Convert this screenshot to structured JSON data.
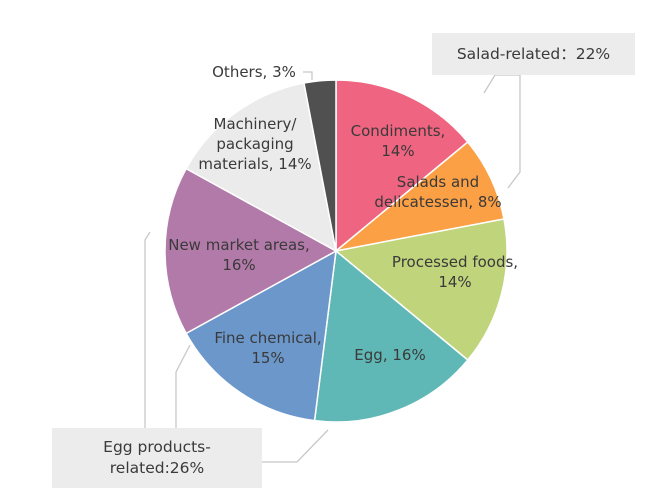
{
  "chart_data": {
    "type": "pie",
    "title": "",
    "slices": [
      {
        "label_lines": [
          "Condiments,",
          "14%"
        ],
        "name": "Condiments",
        "value": 14,
        "color": "#ef6480"
      },
      {
        "label_lines": [
          "Salads and",
          "delicatessen, 8%"
        ],
        "name": "Salads and delicatessen",
        "value": 8,
        "color": "#fba045"
      },
      {
        "label_lines": [
          "Processed foods,",
          "14%"
        ],
        "name": "Processed foods",
        "value": 14,
        "color": "#c0d47c"
      },
      {
        "label_lines": [
          "Egg, 16%"
        ],
        "name": "Egg",
        "value": 16,
        "color": "#5fb8b6"
      },
      {
        "label_lines": [
          "Fine chemical,",
          "15%"
        ],
        "name": "Fine chemical",
        "value": 15,
        "color": "#6b97cb"
      },
      {
        "label_lines": [
          "New market areas,",
          "16%"
        ],
        "name": "New market areas",
        "value": 16,
        "color": "#b27aa9"
      },
      {
        "label_lines": [
          "Machinery/",
          "packaging",
          "materials, 14%"
        ],
        "name": "Machinery/packaging materials",
        "value": 14,
        "color": "#ebebeb"
      },
      {
        "label_lines": [
          "Others, 3%"
        ],
        "name": "Others",
        "value": 3,
        "color": "#505050"
      }
    ],
    "groups": {
      "salad": {
        "label": "Salad-related：22%"
      },
      "egg": {
        "label_lines": [
          "Egg products-",
          "related:26%"
        ]
      }
    }
  }
}
